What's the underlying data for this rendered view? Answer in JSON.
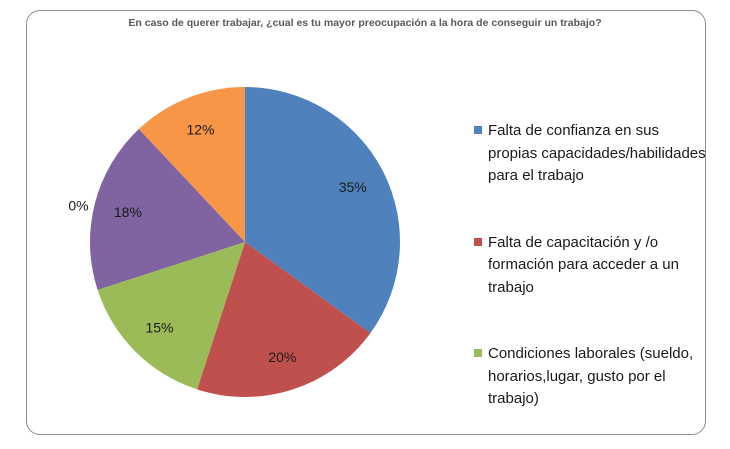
{
  "chart_data": {
    "type": "pie",
    "title": "En caso de querer trabajar, ¿cual es tu mayor preocupación a la hora de conseguir un trabajo?",
    "start_angle": "12 o'clock, clockwise",
    "legend_position": "right",
    "slices": [
      {
        "name": "Falta de confianza en sus propias capacidades/habilidades para el trabajo",
        "value": 35,
        "label": "35%",
        "color": "#4F81BD"
      },
      {
        "name": "Falta de capacitación  y /o formación para acceder a un trabajo",
        "value": 20,
        "label": "20%",
        "color": "#C0504D"
      },
      {
        "name": "Condiciones laborales (sueldo, horarios,lugar, gusto por el trabajo)",
        "value": 15,
        "label": "15%",
        "color": "#9BBB59"
      },
      {
        "value": 18,
        "label": "18%",
        "color": "#8064A2"
      },
      {
        "value": 0,
        "label": "0%",
        "color": "#4BACC6"
      },
      {
        "value": 12,
        "label": "12%",
        "color": "#F79646"
      }
    ]
  }
}
